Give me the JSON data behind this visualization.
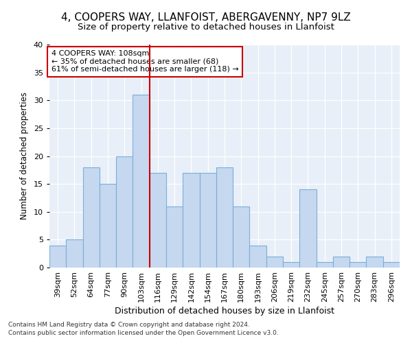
{
  "title1": "4, COOPERS WAY, LLANFOIST, ABERGAVENNY, NP7 9LZ",
  "title2": "Size of property relative to detached houses in Llanfoist",
  "xlabel": "Distribution of detached houses by size in Llanfoist",
  "ylabel": "Number of detached properties",
  "bar_color": "#c5d8f0",
  "bar_edge_color": "#7aaed6",
  "categories": [
    "39sqm",
    "52sqm",
    "64sqm",
    "77sqm",
    "90sqm",
    "103sqm",
    "116sqm",
    "129sqm",
    "142sqm",
    "154sqm",
    "167sqm",
    "180sqm",
    "193sqm",
    "206sqm",
    "219sqm",
    "232sqm",
    "245sqm",
    "257sqm",
    "270sqm",
    "283sqm",
    "296sqm"
  ],
  "values": [
    4,
    5,
    18,
    15,
    20,
    31,
    17,
    11,
    17,
    17,
    18,
    11,
    4,
    2,
    1,
    14,
    1,
    2,
    1,
    2,
    1
  ],
  "vline_color": "#cc0000",
  "vline_index": 5.5,
  "annotation_text": "4 COOPERS WAY: 108sqm\n← 35% of detached houses are smaller (68)\n61% of semi-detached houses are larger (118) →",
  "annotation_box_color": "#ffffff",
  "annotation_box_edge_color": "#cc0000",
  "ylim": [
    0,
    40
  ],
  "yticks": [
    0,
    5,
    10,
    15,
    20,
    25,
    30,
    35,
    40
  ],
  "footnote1": "Contains HM Land Registry data © Crown copyright and database right 2024.",
  "footnote2": "Contains public sector information licensed under the Open Government Licence v3.0.",
  "background_color": "#e8eff8",
  "title1_fontsize": 11,
  "title2_fontsize": 9.5,
  "xlabel_fontsize": 9,
  "ylabel_fontsize": 8.5,
  "tick_fontsize": 8,
  "annotation_fontsize": 8,
  "footnote_fontsize": 6.5
}
